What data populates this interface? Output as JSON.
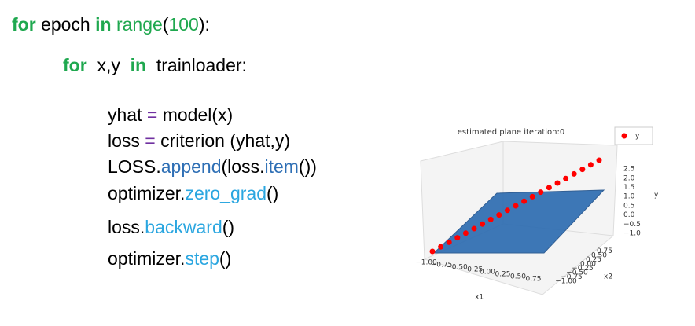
{
  "code": [
    {
      "indent": 0,
      "tokens": [
        {
          "text": "for",
          "color": "#1fa84f",
          "bold": true
        },
        {
          "text": " epoch ",
          "color": "#000000"
        },
        {
          "text": "in",
          "color": "#1fa84f",
          "bold": true
        },
        {
          "text": " range",
          "color": "#1fa84f"
        },
        {
          "text": "(",
          "color": "#000000"
        },
        {
          "text": "100",
          "color": "#1fa84f"
        },
        {
          "text": "):",
          "color": "#000000"
        }
      ]
    },
    {
      "indent": 1,
      "tokens": [
        {
          "text": "for",
          "color": "#1fa84f",
          "bold": true
        },
        {
          "text": "  x,y  ",
          "color": "#000000"
        },
        {
          "text": "in",
          "color": "#1fa84f",
          "bold": true
        },
        {
          "text": "  trainloader:",
          "color": "#000000"
        }
      ]
    },
    {
      "indent": 2,
      "tokens": [
        {
          "text": "yhat ",
          "color": "#000000"
        },
        {
          "text": "=",
          "color": "#7030a0"
        },
        {
          "text": " model(x)",
          "color": "#000000"
        }
      ]
    },
    {
      "indent": 2,
      "tokens": [
        {
          "text": "loss ",
          "color": "#000000"
        },
        {
          "text": "=",
          "color": "#7030a0"
        },
        {
          "text": " criterion (yhat,y)",
          "color": "#000000"
        }
      ]
    },
    {
      "indent": 2,
      "tokens": [
        {
          "text": "LOSS.",
          "color": "#000000"
        },
        {
          "text": "append",
          "color": "#2e6fb5"
        },
        {
          "text": "(loss.",
          "color": "#000000"
        },
        {
          "text": "item",
          "color": "#2e6fb5"
        },
        {
          "text": "())",
          "color": "#000000"
        }
      ]
    },
    {
      "indent": 2,
      "tokens": [
        {
          "text": "optimizer.",
          "color": "#000000"
        },
        {
          "text": "zero_grad",
          "color": "#2aa6e0"
        },
        {
          "text": "()",
          "color": "#000000"
        }
      ]
    },
    {
      "indent": 2,
      "tokens": [
        {
          "text": "loss.",
          "color": "#000000"
        },
        {
          "text": "backward",
          "color": "#2aa6e0"
        },
        {
          "text": "()",
          "color": "#000000"
        }
      ]
    },
    {
      "indent": 2,
      "tokens": [
        {
          "text": "optimizer.",
          "color": "#000000"
        },
        {
          "text": "step",
          "color": "#2aa6e0"
        },
        {
          "text": "()",
          "color": "#000000"
        }
      ]
    }
  ],
  "chart_data": {
    "type": "scatter3d",
    "title": "estimated plane iteration:0",
    "x_label": "x1",
    "y_label": "x2",
    "z_label": "y",
    "series": [
      {
        "name": "y",
        "color": "#ff0000",
        "x": [
          -1.0,
          -0.9,
          -0.8,
          -0.7,
          -0.6,
          -0.5,
          -0.4,
          -0.3,
          -0.2,
          -0.1,
          0.0,
          0.1,
          0.2,
          0.3,
          0.4,
          0.5,
          0.6,
          0.7,
          0.8,
          0.9,
          1.0
        ],
        "values": [
          -1.0,
          -0.8,
          -0.6,
          -0.4,
          -0.2,
          0.0,
          0.2,
          0.4,
          0.6,
          0.8,
          1.0,
          1.2,
          1.4,
          1.6,
          1.8,
          2.0,
          2.2,
          2.4,
          2.6,
          2.8,
          3.0
        ]
      }
    ],
    "xticks": [
      {
        "value": -1.0,
        "label": "−1.00"
      },
      {
        "value": -0.75,
        "label": "−0.75"
      },
      {
        "value": -0.5,
        "label": "−0.50"
      },
      {
        "value": -0.25,
        "label": "−0.25"
      },
      {
        "value": 0,
        "label": "0.00"
      },
      {
        "value": 0.25,
        "label": "0.25"
      },
      {
        "value": 0.5,
        "label": "0.50"
      },
      {
        "value": 0.75,
        "label": "0.75"
      }
    ],
    "yticks": [
      {
        "value": -1.0,
        "label": "−1.00"
      },
      {
        "value": -0.75,
        "label": "−0.75"
      },
      {
        "value": -0.5,
        "label": "−0.50"
      },
      {
        "value": -0.25,
        "label": "−0.25"
      },
      {
        "value": 0,
        "label": "0.00"
      },
      {
        "value": 0.25,
        "label": "0.25"
      },
      {
        "value": 0.5,
        "label": "0.50"
      },
      {
        "value": 0.75,
        "label": "0.75"
      }
    ],
    "zticks": [
      {
        "value": 2.5,
        "label": "2.5"
      },
      {
        "value": 2.0,
        "label": "2.0"
      },
      {
        "value": 1.5,
        "label": "1.5"
      },
      {
        "value": 1.0,
        "label": "1.0"
      },
      {
        "value": 0.5,
        "label": "0.5"
      },
      {
        "value": 0.0,
        "label": "0.0"
      },
      {
        "value": -0.5,
        "label": "−0.5"
      },
      {
        "value": -1.0,
        "label": "−1.0"
      }
    ]
  }
}
